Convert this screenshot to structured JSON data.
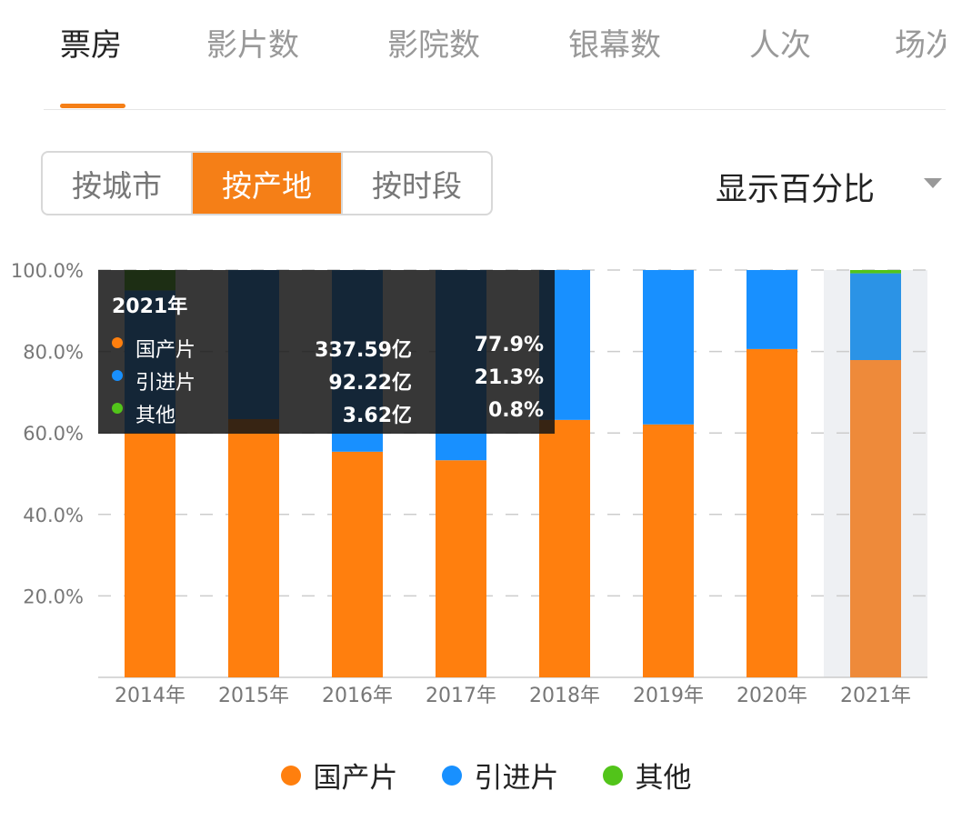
{
  "tabs": [
    {
      "label": "票房"
    },
    {
      "label": "影片数"
    },
    {
      "label": "影院数"
    },
    {
      "label": "银幕数"
    },
    {
      "label": "人次"
    },
    {
      "label": "场次"
    }
  ],
  "segments": [
    {
      "label": "按城市"
    },
    {
      "label": "按产地"
    },
    {
      "label": "按时段"
    }
  ],
  "display_mode": "显示百分比",
  "colors": {
    "accent": "#f57f17",
    "domestic": "#ff7f0e",
    "imported": "#1890ff",
    "other": "#52c41a"
  },
  "tooltip": {
    "title": "2021年",
    "rows": [
      {
        "name": "国产片",
        "value": "337.59亿",
        "percent": "77.9%"
      },
      {
        "name": "引进片",
        "value": "92.22亿",
        "percent": "21.3%"
      },
      {
        "name": "其他",
        "value": "3.62亿",
        "percent": "0.8%"
      }
    ]
  },
  "chart_data": {
    "type": "bar",
    "stacked": true,
    "categories": [
      "2014年",
      "2015年",
      "2016年",
      "2017年",
      "2018年",
      "2019年",
      "2020年",
      "2021年"
    ],
    "series": [
      {
        "name": "国产片",
        "values": [
          60,
          63.4,
          55.4,
          53.3,
          63.2,
          62.1,
          80.6,
          77.9
        ]
      },
      {
        "name": "引进片",
        "values": [
          35,
          36.6,
          44.6,
          46.7,
          36.8,
          37.9,
          19.4,
          21.3
        ]
      },
      {
        "name": "其他",
        "values": [
          5,
          0,
          0,
          0,
          0,
          0,
          0,
          0.8
        ]
      }
    ],
    "yticks": [
      "20.0%",
      "40.0%",
      "60.0%",
      "80.0%",
      "100.0%"
    ],
    "ylim": [
      0,
      100
    ],
    "grid": true,
    "highlighted": "2021年",
    "legend": "bottom"
  }
}
